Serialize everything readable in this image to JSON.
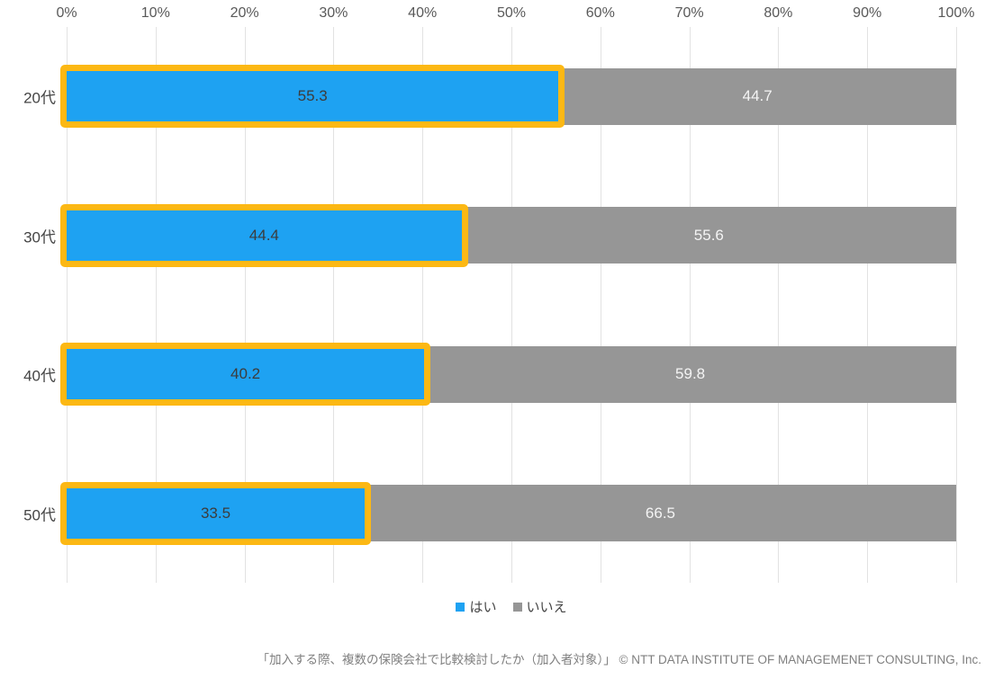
{
  "chart_data": {
    "type": "bar",
    "orientation": "horizontal-stacked",
    "categories": [
      "20代",
      "30代",
      "40代",
      "50代"
    ],
    "series": [
      {
        "name": "はい",
        "color": "#1ea2f2",
        "values": [
          55.3,
          44.4,
          40.2,
          33.5
        ]
      },
      {
        "name": "いいえ",
        "color": "#969696",
        "values": [
          44.7,
          55.6,
          59.8,
          66.5
        ]
      }
    ],
    "x_ticks": [
      "0%",
      "10%",
      "20%",
      "30%",
      "40%",
      "50%",
      "60%",
      "70%",
      "80%",
      "90%",
      "100%"
    ],
    "xlim": [
      0,
      100
    ],
    "axis_position": "top",
    "grid": true,
    "gridline_color": "#e2e2e2",
    "legend_position": "bottom",
    "highlight_border_color": "#fcb814",
    "value_label_color_on_blue": "#3c3c3c",
    "value_label_color_on_gray": "#f4f4f4"
  },
  "footer": {
    "caption": "「加入する際、複数の保険会社で比較検討したか（加入者対象）」 © NTT DATA INSTITUTE OF MANAGEMENET CONSULTING, Inc."
  }
}
